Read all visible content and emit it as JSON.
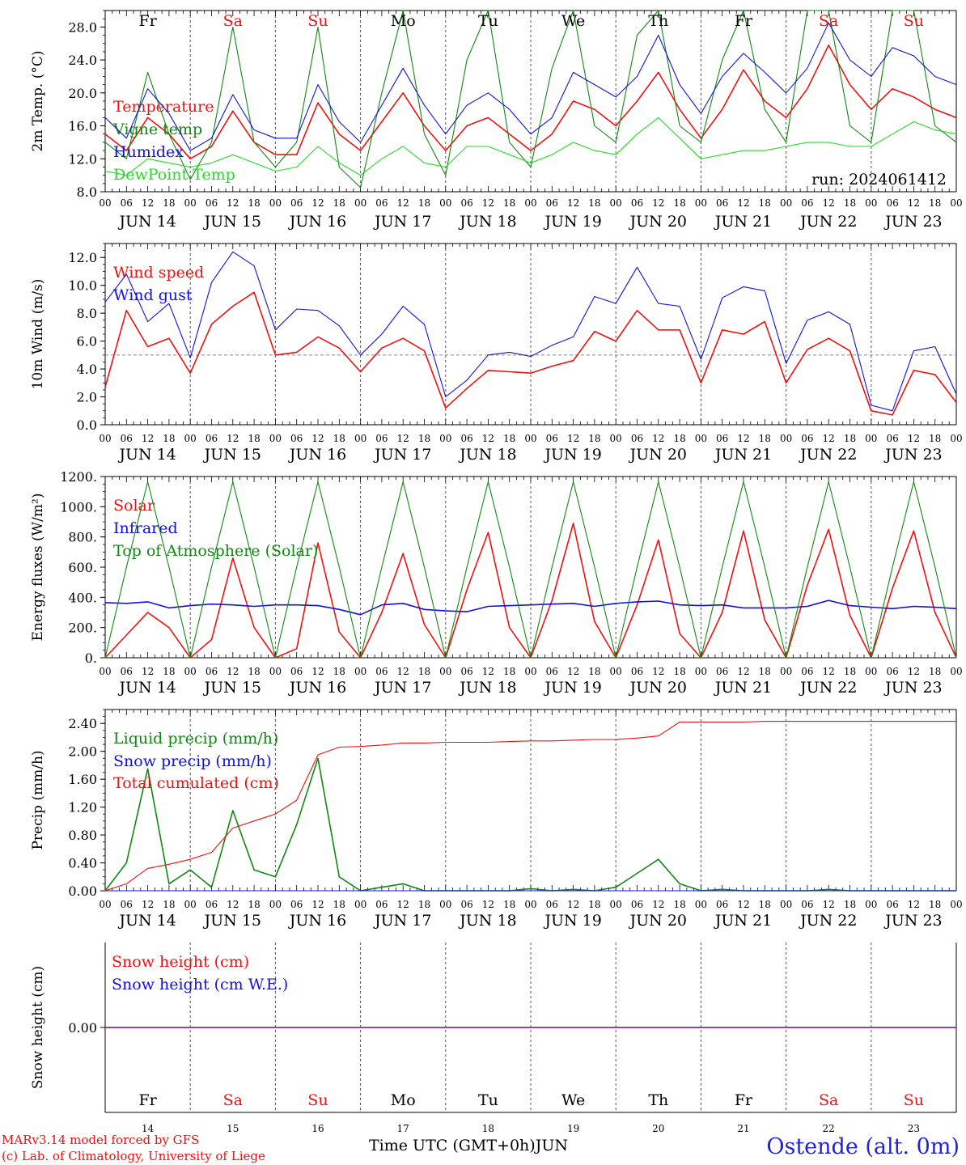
{
  "run_label": "run: 2024061412",
  "location": "Ostende (alt. 0m)",
  "model_credit": "MARv3.14 model forced by GFS",
  "lab_credit": "(c) Lab. of Climatology, University of Liege",
  "xaxis_title": "Time UTC (GMT+0h)",
  "month_label": "JUN",
  "hour_ticks": [
    "00",
    "06",
    "12",
    "18"
  ],
  "last_hour_tick": "00",
  "day_labels": [
    "JUN 14",
    "JUN 15",
    "JUN 16",
    "JUN 17",
    "JUN 18",
    "JUN 19",
    "JUN 20",
    "JUN 21",
    "JUN 22",
    "JUN 23"
  ],
  "day_numbers": [
    "14",
    "15",
    "16",
    "17",
    "18",
    "19",
    "20",
    "21",
    "22",
    "23"
  ],
  "weekdays": [
    {
      "label": "Fr",
      "color": "#000000"
    },
    {
      "label": "Sa",
      "color": "#ee1111"
    },
    {
      "label": "Su",
      "color": "#ee1111"
    },
    {
      "label": "Mo",
      "color": "#000000"
    },
    {
      "label": "Tu",
      "color": "#000000"
    },
    {
      "label": "We",
      "color": "#000000"
    },
    {
      "label": "Th",
      "color": "#000000"
    },
    {
      "label": "Fr",
      "color": "#000000"
    },
    {
      "label": "Sa",
      "color": "#ee1111"
    },
    {
      "label": "Su",
      "color": "#ee1111"
    }
  ],
  "colors": {
    "red": "#ee1111",
    "blue": "#1111dd",
    "green": "#118811",
    "lightgreen": "#22dd22",
    "purple": "#7733aa",
    "grid": "#555555"
  },
  "chart_data": [
    {
      "type": "line",
      "ylabel": "2m Temp. (°C)",
      "ylim": [
        8,
        30
      ],
      "yticks": [
        "8.0",
        "12.0",
        "16.0",
        "20.0",
        "24.0",
        "28.0"
      ],
      "x_hours": [
        0,
        6,
        12,
        18,
        24,
        30,
        36,
        42,
        48,
        54,
        60,
        66,
        72,
        78,
        84,
        90,
        96,
        102,
        108,
        114,
        120,
        126,
        132,
        138,
        144,
        150,
        156,
        162,
        168,
        174,
        180,
        186,
        192,
        198,
        204,
        210,
        216,
        222,
        228,
        234,
        240
      ],
      "series": [
        {
          "name": "Temperature",
          "color": "#ee1111",
          "values": [
            15,
            13,
            17,
            15,
            12,
            13.5,
            17.8,
            14,
            12.5,
            12.5,
            18.8,
            15,
            13,
            16.5,
            20,
            16,
            13,
            16,
            17,
            15,
            13,
            15,
            19,
            18,
            16,
            19,
            22.5,
            18,
            14.5,
            18,
            22.8,
            19,
            17,
            20.5,
            25.8,
            21,
            18,
            20.5,
            19.5,
            18,
            17
          ]
        },
        {
          "name": "Vigne temp",
          "color": "#118811",
          "values": [
            14,
            12,
            22.5,
            15,
            9.5,
            14,
            28,
            14,
            11,
            14,
            28,
            11,
            8.5,
            20,
            30,
            15,
            10,
            24,
            30,
            14,
            11,
            23,
            30,
            16,
            14,
            27,
            30,
            16,
            14,
            24,
            30,
            18,
            14,
            30,
            30,
            16,
            14,
            30,
            30,
            16,
            14
          ]
        },
        {
          "name": "Humidex",
          "color": "#1111dd",
          "values": [
            17,
            14.5,
            20.5,
            17.5,
            13,
            14.5,
            19.8,
            15.5,
            14.5,
            14.5,
            21,
            16.5,
            14,
            18.5,
            23,
            18.5,
            15,
            18.5,
            20,
            18,
            15,
            17,
            22.5,
            21,
            19.5,
            22,
            27,
            21,
            17.5,
            22,
            24.8,
            22.5,
            20,
            23,
            28.5,
            24,
            22,
            25.5,
            24.5,
            22,
            21
          ]
        },
        {
          "name": "DewPoint Temp",
          "color": "#22dd22",
          "values": [
            10.5,
            10,
            12,
            11.5,
            11,
            11.5,
            12.5,
            11.5,
            10.5,
            11,
            13.5,
            11.5,
            10,
            12,
            13.5,
            11.5,
            11,
            13.5,
            13.5,
            12.5,
            11.5,
            12.5,
            14,
            13,
            12.5,
            15,
            17,
            14.5,
            12,
            12.5,
            13,
            13,
            13.5,
            14,
            14,
            13.5,
            13.5,
            15,
            16.5,
            15.5,
            15
          ]
        }
      ]
    },
    {
      "type": "line",
      "ylabel": "10m Wind (m/s)",
      "ylim": [
        0,
        13
      ],
      "yticks": [
        "0.0",
        "2.0",
        "4.0",
        "6.0",
        "8.0",
        "10.0",
        "12.0"
      ],
      "reference_line": 5,
      "x_hours": [
        0,
        6,
        12,
        18,
        24,
        30,
        36,
        42,
        48,
        54,
        60,
        66,
        72,
        78,
        84,
        90,
        96,
        102,
        108,
        114,
        120,
        126,
        132,
        138,
        144,
        150,
        156,
        162,
        168,
        174,
        180,
        186,
        192,
        198,
        204,
        210,
        216,
        222,
        228,
        234,
        240
      ],
      "series": [
        {
          "name": "Wind speed",
          "color": "#ee1111",
          "values": [
            2.7,
            8.2,
            5.6,
            6.2,
            3.7,
            7.2,
            8.5,
            9.5,
            5,
            5.2,
            6.3,
            5.5,
            3.8,
            5.5,
            6.2,
            5.3,
            1.2,
            2.6,
            3.9,
            3.8,
            3.7,
            4.2,
            4.6,
            6.7,
            6,
            8.2,
            6.8,
            6.8,
            3,
            6.8,
            6.5,
            7.4,
            3,
            5.4,
            6.2,
            5.3,
            1,
            0.7,
            3.9,
            3.6,
            1.6
          ]
        },
        {
          "name": "Wind gust",
          "color": "#1111dd",
          "values": [
            8.8,
            10.8,
            7.4,
            8.7,
            4.8,
            10.2,
            12.4,
            11.4,
            6.8,
            8.3,
            8.2,
            7.1,
            5,
            6.5,
            8.5,
            7.2,
            2,
            3.2,
            5,
            5.2,
            4.9,
            5.7,
            6.3,
            9.2,
            8.7,
            11.3,
            8.7,
            8.5,
            4.7,
            9.1,
            9.9,
            9.6,
            4.4,
            7.5,
            8.1,
            7.2,
            1.4,
            1,
            5.3,
            5.6,
            2.2
          ]
        }
      ]
    },
    {
      "type": "line",
      "ylabel": "Energy fluxes (W/m²)",
      "ylim": [
        0,
        1200
      ],
      "yticks": [
        "0.",
        "200.",
        "400.",
        "600.",
        "800.",
        "1000.",
        "1200."
      ],
      "x_hours": [
        0,
        6,
        12,
        18,
        24,
        30,
        36,
        42,
        48,
        54,
        60,
        66,
        72,
        78,
        84,
        90,
        96,
        102,
        108,
        114,
        120,
        126,
        132,
        138,
        144,
        150,
        156,
        162,
        168,
        174,
        180,
        186,
        192,
        198,
        204,
        210,
        216,
        222,
        228,
        234,
        240
      ],
      "series": [
        {
          "name": "Solar",
          "color": "#ee1111",
          "values": [
            0,
            150,
            300,
            200,
            0,
            120,
            660,
            200,
            0,
            60,
            760,
            170,
            0,
            300,
            690,
            220,
            0,
            450,
            830,
            200,
            0,
            380,
            890,
            240,
            0,
            350,
            780,
            160,
            0,
            300,
            840,
            250,
            0,
            480,
            850,
            280,
            0,
            460,
            840,
            300,
            0
          ]
        },
        {
          "name": "Infrared",
          "color": "#1111dd",
          "values": [
            365,
            360,
            370,
            330,
            345,
            355,
            350,
            340,
            350,
            350,
            345,
            320,
            285,
            350,
            360,
            320,
            310,
            305,
            340,
            345,
            350,
            355,
            360,
            340,
            360,
            370,
            375,
            350,
            345,
            350,
            330,
            330,
            330,
            340,
            380,
            345,
            335,
            325,
            340,
            335,
            325
          ]
        },
        {
          "name": "Top of Atmosphere (Solar)",
          "color": "#118811",
          "values": [
            0,
            600,
            1165,
            600,
            0,
            600,
            1165,
            600,
            0,
            600,
            1165,
            600,
            0,
            600,
            1165,
            600,
            0,
            600,
            1165,
            600,
            0,
            600,
            1165,
            600,
            0,
            600,
            1165,
            600,
            0,
            600,
            1165,
            600,
            0,
            600,
            1165,
            600,
            0,
            600,
            1165,
            600,
            0
          ]
        }
      ]
    },
    {
      "type": "line",
      "ylabel": "Precip (mm/h)",
      "ylim": [
        0,
        2.6
      ],
      "yticks": [
        "0.00",
        "0.40",
        "0.80",
        "1.20",
        "1.60",
        "2.00",
        "2.40"
      ],
      "x_hours": [
        0,
        6,
        12,
        18,
        24,
        30,
        36,
        42,
        48,
        54,
        60,
        66,
        72,
        78,
        84,
        90,
        96,
        102,
        108,
        114,
        120,
        126,
        132,
        138,
        144,
        150,
        156,
        162,
        168,
        174,
        180,
        186,
        192,
        198,
        204,
        210,
        216,
        222,
        228,
        234,
        240
      ],
      "series": [
        {
          "name": "Liquid precip (mm/h)",
          "color": "#118811",
          "values": [
            0,
            0.4,
            1.75,
            0.1,
            0.3,
            0.05,
            1.15,
            0.3,
            0.2,
            0.95,
            1.9,
            0.2,
            0,
            0.05,
            0.1,
            0,
            0,
            0,
            0,
            0,
            0.03,
            0,
            0.02,
            0,
            0.05,
            0.25,
            0.45,
            0.1,
            0,
            0.02,
            0,
            0,
            0,
            0,
            0.02,
            0,
            0,
            0,
            0,
            0,
            0
          ]
        },
        {
          "name": "Snow precip (mm/h)",
          "color": "#1111dd",
          "values": [
            0,
            0,
            0,
            0,
            0,
            0,
            0,
            0,
            0,
            0,
            0,
            0,
            0,
            0,
            0,
            0,
            0,
            0,
            0,
            0,
            0,
            0,
            0,
            0,
            0,
            0,
            0,
            0,
            0,
            0,
            0,
            0,
            0,
            0,
            0,
            0,
            0,
            0,
            0,
            0,
            0
          ]
        },
        {
          "name": "Total cumulated (cm)",
          "color": "#ee1111",
          "values": [
            0,
            0.1,
            0.32,
            0.38,
            0.45,
            0.55,
            0.9,
            1.0,
            1.1,
            1.3,
            1.95,
            2.06,
            2.07,
            2.09,
            2.12,
            2.12,
            2.13,
            2.13,
            2.13,
            2.14,
            2.15,
            2.15,
            2.16,
            2.17,
            2.17,
            2.19,
            2.22,
            2.42,
            2.42,
            2.42,
            2.42,
            2.43,
            2.43,
            2.43,
            2.43,
            2.43,
            2.43,
            2.43,
            2.43,
            2.43,
            2.43
          ]
        }
      ]
    },
    {
      "type": "line",
      "ylabel": "Snow height (cm)",
      "yticks": [
        "0.00"
      ],
      "series": [
        {
          "name": "Snow height (cm)",
          "color": "#ee1111",
          "values": [
            0,
            0,
            0,
            0,
            0,
            0,
            0,
            0,
            0,
            0,
            0,
            0,
            0,
            0,
            0,
            0,
            0,
            0,
            0,
            0,
            0,
            0,
            0,
            0,
            0,
            0,
            0,
            0,
            0,
            0,
            0,
            0,
            0,
            0,
            0,
            0,
            0,
            0,
            0,
            0,
            0
          ]
        },
        {
          "name": "Snow height (cm W.E.)",
          "color": "#1111dd",
          "values": [
            0,
            0,
            0,
            0,
            0,
            0,
            0,
            0,
            0,
            0,
            0,
            0,
            0,
            0,
            0,
            0,
            0,
            0,
            0,
            0,
            0,
            0,
            0,
            0,
            0,
            0,
            0,
            0,
            0,
            0,
            0,
            0,
            0,
            0,
            0,
            0,
            0,
            0,
            0,
            0,
            0
          ]
        }
      ]
    }
  ]
}
